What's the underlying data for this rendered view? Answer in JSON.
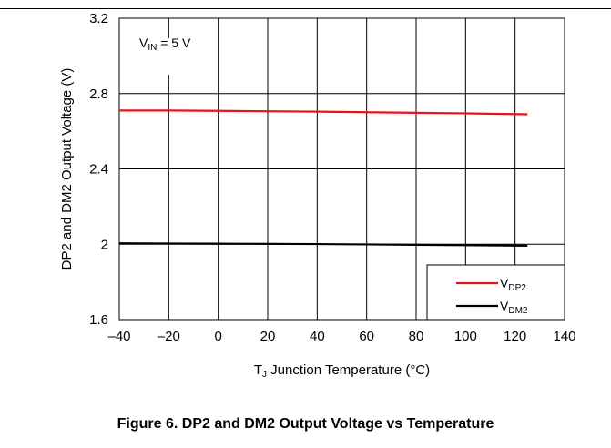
{
  "caption": "Figure 6. DP2 and DM2 Output Voltage vs Temperature",
  "chart_data": {
    "type": "line",
    "xlabel": {
      "main": "T",
      "sub": "J",
      "rest": " Junction Temperature (°C)"
    },
    "ylabel": "DP2 and DM2 Output Voltage (V)",
    "xlim": [
      -40,
      140
    ],
    "ylim": [
      1.6,
      3.2
    ],
    "x_ticks": [
      -40,
      -20,
      0,
      20,
      40,
      60,
      80,
      100,
      120,
      140
    ],
    "x_tick_labels": [
      "–40",
      "–20",
      "0",
      "20",
      "40",
      "60",
      "80",
      "100",
      "120",
      "140"
    ],
    "y_ticks": [
      1.6,
      2.0,
      2.4,
      2.8,
      3.2
    ],
    "y_tick_labels": [
      "1.6",
      "2",
      "2.4",
      "2.8",
      "3.2"
    ],
    "grid": true,
    "legend_position": "bottom-right",
    "annotation": {
      "main": "V",
      "sub": "IN",
      "rest": " = 5 V"
    },
    "series": [
      {
        "name": "DP2",
        "label_main": "V",
        "label_sub": "DP2",
        "color": "#e8141b",
        "x": [
          -40,
          -20,
          0,
          20,
          40,
          60,
          80,
          100,
          125
        ],
        "values": [
          2.71,
          2.71,
          2.708,
          2.706,
          2.704,
          2.701,
          2.698,
          2.695,
          2.69
        ]
      },
      {
        "name": "DM2",
        "label_main": "V",
        "label_sub": "DM2",
        "color": "#000000",
        "x": [
          -40,
          -20,
          0,
          20,
          40,
          60,
          80,
          100,
          125
        ],
        "values": [
          2.005,
          2.004,
          2.003,
          2.002,
          2.001,
          1.999,
          1.997,
          1.995,
          1.992
        ]
      }
    ]
  }
}
